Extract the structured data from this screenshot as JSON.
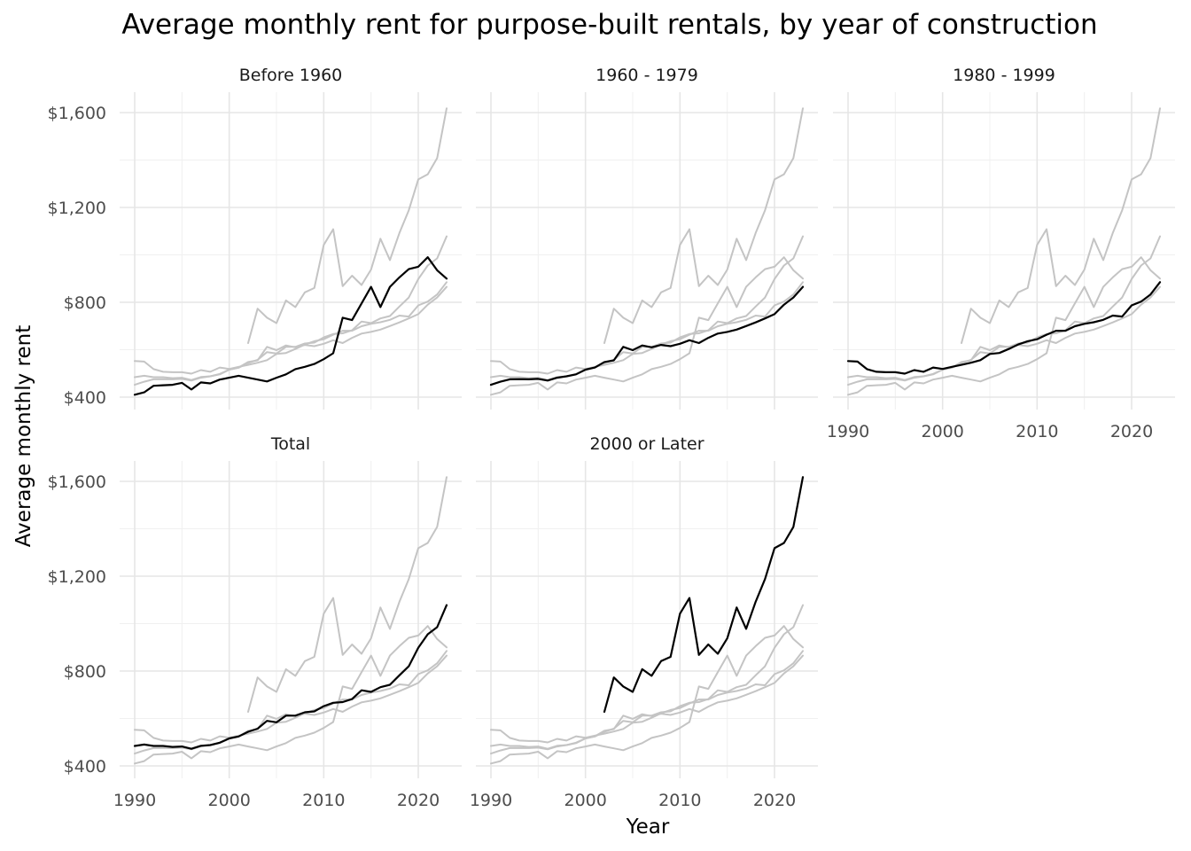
{
  "chart_data": {
    "type": "line",
    "title": "Average monthly rent for purpose-built rentals, by year of construction",
    "xlabel": "Year",
    "ylabel": "Average monthly rent",
    "xlim": [
      1990,
      2023
    ],
    "ylim": [
      380,
      1680
    ],
    "x_ticks": [
      1990,
      2000,
      2010,
      2020
    ],
    "x_tick_labels": [
      "1990",
      "2000",
      "2010",
      "2020"
    ],
    "y_ticks": [
      400,
      800,
      1200,
      1600
    ],
    "y_tick_labels": [
      "$400",
      "$800",
      "$1,200",
      "$1,600"
    ],
    "grid": true,
    "facets": [
      "Before 1960",
      "1960 - 1979",
      "1980 - 1999",
      "Total",
      "2000 or Later"
    ],
    "colors": {
      "highlight": "#000000",
      "background": "#c4c4c4"
    },
    "series": [
      {
        "name": "Before 1960",
        "x": [
          1990,
          1991,
          1992,
          1993,
          1994,
          1995,
          1996,
          1997,
          1998,
          1999,
          2000,
          2001,
          2002,
          2003,
          2004,
          2005,
          2006,
          2007,
          2008,
          2009,
          2010,
          2011,
          2012,
          2013,
          2014,
          2015,
          2016,
          2017,
          2018,
          2019,
          2020,
          2021,
          2022,
          2023
        ],
        "values": [
          410,
          420,
          448,
          450,
          452,
          460,
          432,
          462,
          458,
          474,
          482,
          490,
          482,
          474,
          466,
          482,
          496,
          518,
          528,
          540,
          560,
          585,
          735,
          725,
          795,
          865,
          780,
          865,
          905,
          940,
          950,
          990,
          935,
          900
        ]
      },
      {
        "name": "1960 - 1979",
        "x": [
          1990,
          1991,
          1992,
          1993,
          1994,
          1995,
          1996,
          1997,
          1998,
          1999,
          2000,
          2001,
          2002,
          2003,
          2004,
          2005,
          2006,
          2007,
          2008,
          2009,
          2010,
          2011,
          2012,
          2013,
          2014,
          2015,
          2016,
          2017,
          2018,
          2019,
          2020,
          2021,
          2022,
          2023
        ],
        "values": [
          452,
          465,
          475,
          476,
          475,
          477,
          470,
          482,
          488,
          496,
          516,
          525,
          548,
          555,
          612,
          598,
          618,
          610,
          620,
          615,
          625,
          640,
          628,
          650,
          668,
          675,
          685,
          700,
          715,
          732,
          750,
          790,
          820,
          865
        ]
      },
      {
        "name": "1980 - 1999",
        "x": [
          1990,
          1991,
          1992,
          1993,
          1994,
          1995,
          1996,
          1997,
          1998,
          1999,
          2000,
          2001,
          2002,
          2003,
          2004,
          2005,
          2006,
          2007,
          2008,
          2009,
          2010,
          2011,
          2012,
          2013,
          2014,
          2015,
          2016,
          2017,
          2018,
          2019,
          2020,
          2021,
          2022,
          2023
        ],
        "values": [
          552,
          550,
          518,
          507,
          505,
          505,
          499,
          514,
          507,
          525,
          519,
          528,
          536,
          545,
          556,
          582,
          586,
          603,
          622,
          636,
          644,
          663,
          680,
          680,
          699,
          709,
          716,
          726,
          744,
          740,
          787,
          803,
          833,
          885
        ]
      },
      {
        "name": "Total",
        "x": [
          1990,
          1991,
          1992,
          1993,
          1994,
          1995,
          1996,
          1997,
          1998,
          1999,
          2000,
          2001,
          2002,
          2003,
          2004,
          2005,
          2006,
          2007,
          2008,
          2009,
          2010,
          2011,
          2012,
          2013,
          2014,
          2015,
          2016,
          2017,
          2018,
          2019,
          2020,
          2021,
          2022,
          2023
        ],
        "values": [
          484,
          490,
          484,
          484,
          480,
          482,
          472,
          485,
          488,
          498,
          516,
          524,
          544,
          557,
          590,
          584,
          612,
          612,
          626,
          630,
          652,
          666,
          669,
          682,
          719,
          712,
          732,
          742,
          782,
          820,
          898,
          955,
          985,
          1078
        ]
      },
      {
        "name": "2000 or Later",
        "x": [
          2002,
          2003,
          2004,
          2005,
          2006,
          2007,
          2008,
          2009,
          2010,
          2011,
          2012,
          2013,
          2014,
          2015,
          2016,
          2017,
          2018,
          2019,
          2020,
          2021,
          2022,
          2023
        ],
        "values": [
          628,
          773,
          735,
          712,
          808,
          780,
          842,
          860,
          1042,
          1108,
          868,
          912,
          873,
          938,
          1068,
          978,
          1092,
          1188,
          1318,
          1340,
          1408,
          1618
        ]
      }
    ]
  }
}
